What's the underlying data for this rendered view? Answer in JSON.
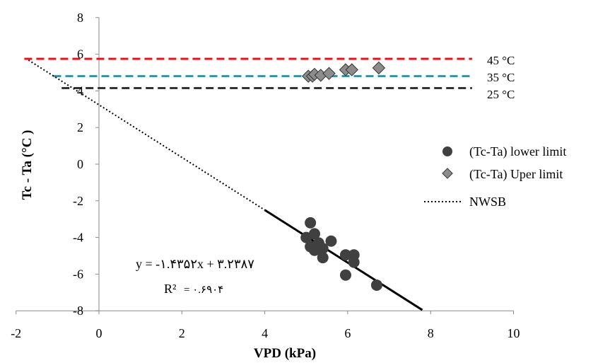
{
  "chart_data": {
    "type": "scatter",
    "xlabel": "VPD (kPa)",
    "ylabel": "Tc - Ta (°C )",
    "xlim": [
      -2,
      10
    ],
    "ylim": [
      -8,
      8
    ],
    "xticks": [
      "-2",
      "0",
      "2",
      "4",
      "6",
      "8",
      "10"
    ],
    "yticks": [
      "-8",
      "-6",
      "-4",
      "-2",
      "0",
      "2",
      "4",
      "6",
      "8"
    ],
    "grid": false,
    "legend_position": "right",
    "series": [
      {
        "name": "(Tc-Ta) lower limit",
        "marker": "circle",
        "color": "#404040",
        "points": [
          [
            5.1,
            -3.2
          ],
          [
            5.2,
            -3.8
          ],
          [
            5.0,
            -4.0
          ],
          [
            5.3,
            -4.3
          ],
          [
            5.1,
            -4.5
          ],
          [
            5.2,
            -4.7
          ],
          [
            5.4,
            -4.6
          ],
          [
            5.6,
            -4.2
          ],
          [
            5.4,
            -5.1
          ],
          [
            5.95,
            -4.95
          ],
          [
            6.15,
            -4.95
          ],
          [
            6.15,
            -5.35
          ],
          [
            5.95,
            -6.05
          ],
          [
            6.7,
            -6.6
          ]
        ]
      },
      {
        "name": "(Tc-Ta) Uper limit",
        "marker": "diamond",
        "color": "#8c8c8c",
        "points": [
          [
            5.05,
            4.8
          ],
          [
            5.15,
            4.8
          ],
          [
            5.2,
            4.9
          ],
          [
            5.35,
            4.85
          ],
          [
            5.55,
            4.95
          ],
          [
            5.95,
            5.15
          ],
          [
            6.1,
            5.15
          ],
          [
            6.75,
            5.25
          ]
        ]
      },
      {
        "name": "NWSB",
        "style": "dotted",
        "color": "#000000",
        "line": {
          "x_start": -1.7,
          "x_end": 4.0,
          "slope": -1.4352,
          "intercept": 3.2387
        }
      }
    ],
    "regression_line": {
      "x_start": 4.0,
      "x_end": 7.8,
      "slope": -1.4352,
      "intercept": 3.2387,
      "color": "#000000"
    },
    "reference_lines": [
      {
        "label": "45 °C",
        "y": 5.75,
        "x_start": -1.8,
        "x_end": 9.0,
        "color": "#e0181b"
      },
      {
        "label": "35 °C",
        "y": 4.8,
        "x_start": -1.1,
        "x_end": 9.0,
        "color": "#3b8ea5"
      },
      {
        "label": "25 °C",
        "y": 4.15,
        "x_start": -0.9,
        "x_end": 9.0,
        "color": "#333333"
      }
    ],
    "annotations": {
      "equation": "y = -۱.۴۳۵۲x + ۳.۲۳۸۷",
      "r2_label": "R²",
      "r2_value": "= ۰.۶۹۰۴"
    }
  }
}
